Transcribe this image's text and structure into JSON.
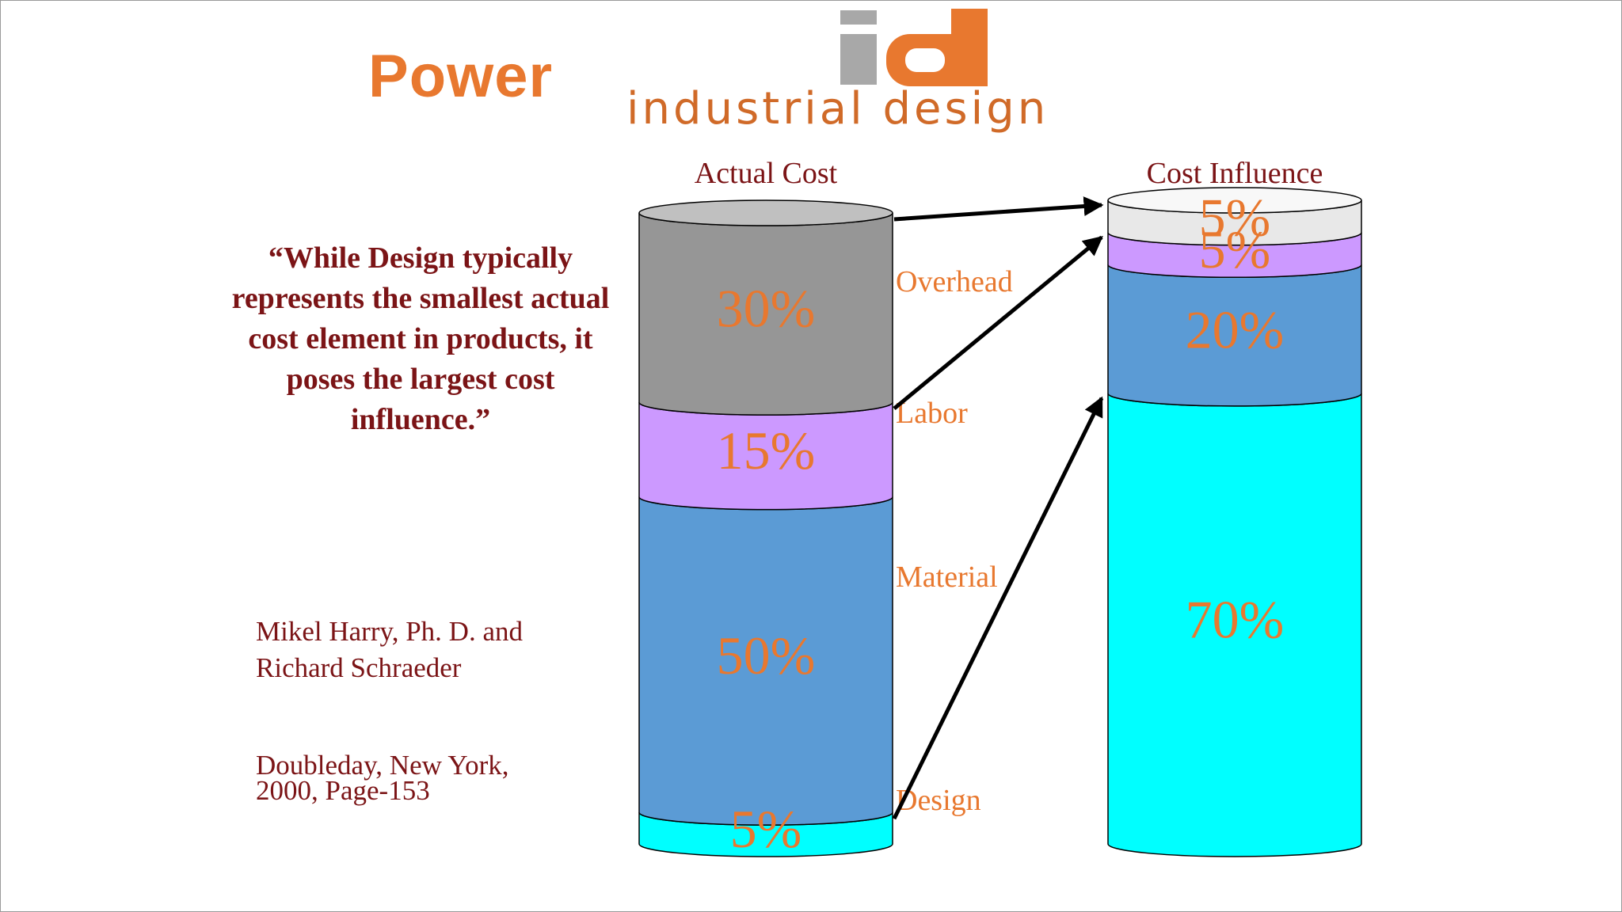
{
  "slide": {
    "title": "Power",
    "logo_text": "industrial design",
    "quote": "“While Design typically represents the smallest actual cost element in products, it poses the largest cost influence.”",
    "author_line1": "Mikel Harry, Ph. D. and",
    "author_line2": "Richard Schraeder",
    "publisher_line1": "Doubleday, New York,",
    "publisher_line2": "2000, Page-153"
  },
  "colors": {
    "accent_orange": "#e8782f",
    "quote_red": "#7b1416",
    "overhead_actual": "#969696",
    "overhead_influence": "#e8e8e8",
    "labor": "#cc99ff",
    "material": "#5b9bd5",
    "design": "#00ffff"
  },
  "chart_data": {
    "type": "bar",
    "stacked": true,
    "categories": [
      "Actual Cost",
      "Cost Influence"
    ],
    "segments": [
      "Design",
      "Material",
      "Labor",
      "Overhead"
    ],
    "series": [
      {
        "name": "Design",
        "values": [
          5,
          70
        ]
      },
      {
        "name": "Material",
        "values": [
          50,
          20
        ]
      },
      {
        "name": "Labor",
        "values": [
          15,
          5
        ]
      },
      {
        "name": "Overhead",
        "values": [
          30,
          5
        ]
      }
    ],
    "labels": {
      "actual": [
        "5%",
        "50%",
        "15%",
        "30%"
      ],
      "influence": [
        "70%",
        "20%",
        "5%",
        "5%"
      ]
    },
    "ylim": [
      0,
      100
    ],
    "arrows": [
      {
        "from": "Overhead",
        "to": "Overhead"
      },
      {
        "from": "Labor",
        "to": "Labor"
      },
      {
        "from": "Design",
        "to": "Design"
      }
    ]
  }
}
